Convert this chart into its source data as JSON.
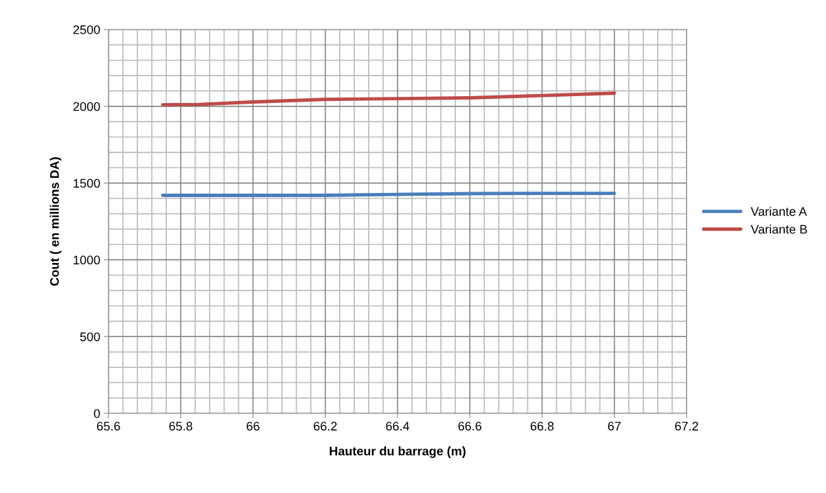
{
  "chart_data": {
    "type": "line",
    "xlabel": "Hauteur du barrage (m)",
    "ylabel": "Cout ( en millions DA)",
    "x": [
      65.75,
      65.85,
      66.0,
      66.2,
      66.4,
      66.6,
      66.8,
      67.0
    ],
    "series": [
      {
        "name": "Variante A",
        "color": "#4a7ebb",
        "values": [
          1420,
          1420,
          1420,
          1420,
          1426,
          1431,
          1433,
          1433
        ]
      },
      {
        "name": "Variante B",
        "color": "#be4b48",
        "values": [
          2010,
          2012,
          2028,
          2045,
          2050,
          2055,
          2070,
          2085
        ]
      }
    ],
    "xlim": [
      65.6,
      67.2
    ],
    "xticks": [
      65.6,
      65.8,
      66,
      66.2,
      66.4,
      66.6,
      66.8,
      67,
      67.2
    ],
    "ylim": [
      0,
      2500
    ],
    "yticks": [
      0,
      500,
      1000,
      1500,
      2000,
      2500
    ],
    "grid": true,
    "legend": "right",
    "marker": "none",
    "line_style": "solid"
  }
}
